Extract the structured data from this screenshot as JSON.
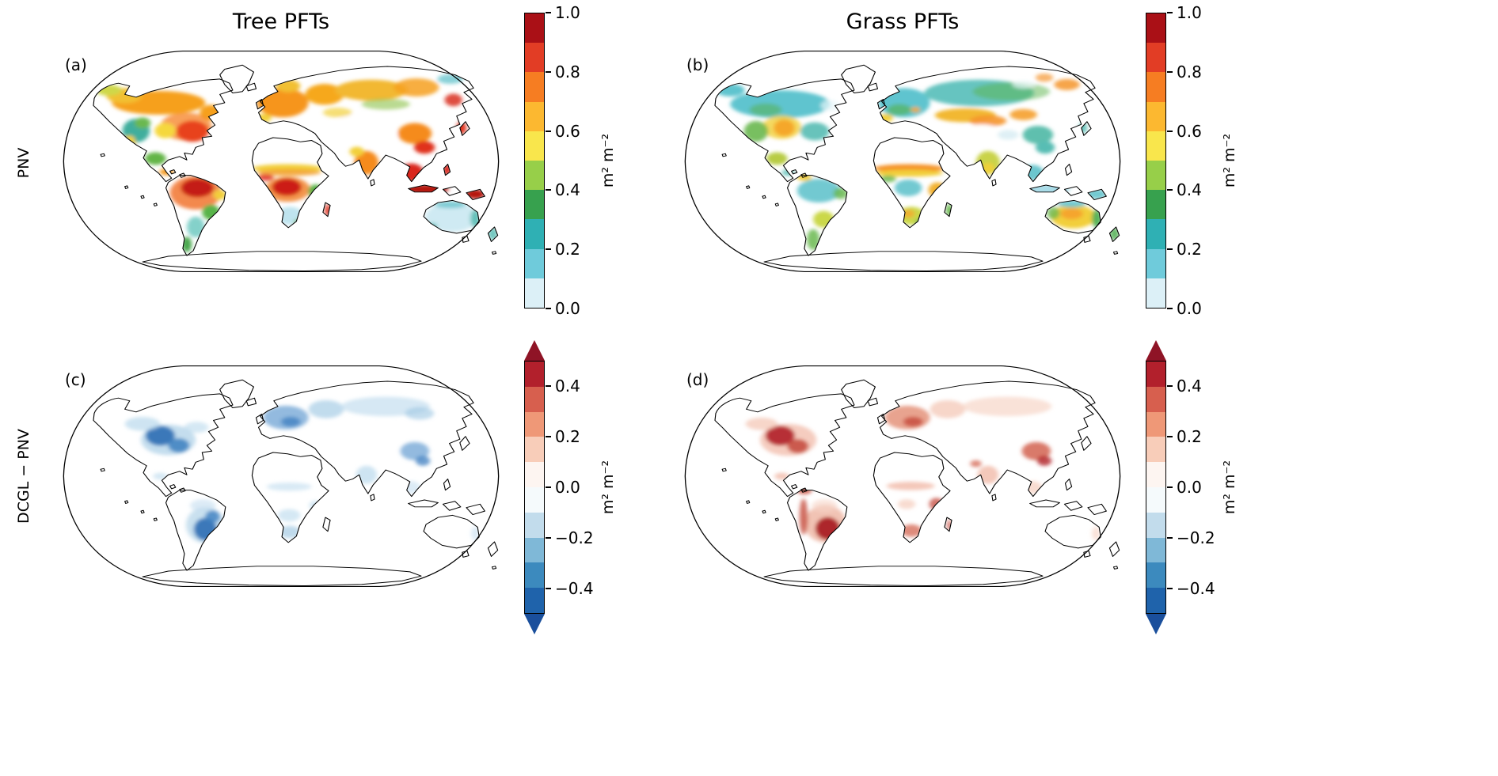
{
  "figure": {
    "column_titles": [
      "Tree PFTs",
      "Grass PFTs"
    ],
    "row_labels": [
      "PNV",
      "DCGL − PNV"
    ]
  },
  "panels": {
    "a": {
      "label": "(a)",
      "row": "PNV",
      "column": "Tree PFTs"
    },
    "b": {
      "label": "(b)",
      "row": "PNV",
      "column": "Grass PFTs"
    },
    "c": {
      "label": "(c)",
      "row": "DCGL − PNV",
      "column": "Tree PFTs"
    },
    "d": {
      "label": "(d)",
      "row": "DCGL − PNV",
      "column": "Grass PFTs"
    }
  },
  "colorbars": {
    "pnv": {
      "unit": "m² m⁻²",
      "ticks": [
        "1.0",
        "0.8",
        "0.6",
        "0.4",
        "0.2",
        "0.0"
      ],
      "range": [
        0.0,
        1.0
      ],
      "colors_bottom_to_top": [
        "#dcf0f7",
        "#6fcbdb",
        "#2fb0b4",
        "#37a14e",
        "#97cf49",
        "#f9e64c",
        "#fcb830",
        "#f67d22",
        "#e23d25",
        "#aa1016"
      ]
    },
    "diff": {
      "unit": "m² m⁻²",
      "ticks": [
        "0.4",
        "0.2",
        "0.0",
        "−0.2",
        "−0.4"
      ],
      "range": [
        -0.5,
        0.5
      ],
      "extended_arrows": true,
      "colors_bottom_to_top": [
        "#1f63ab",
        "#3c8abe",
        "#7fb8d7",
        "#c2dcec",
        "#f5fafc",
        "#fdf5f1",
        "#f8cdb9",
        "#ef9877",
        "#d75f4e",
        "#b2202c"
      ],
      "under_color": "#1a4f9c",
      "over_color": "#8f1426"
    }
  },
  "chart_data": [
    {
      "type": "heatmap",
      "subtype": "global map (Robinson projection)",
      "panel": "(a)",
      "row": "PNV",
      "column": "Tree PFTs",
      "units": "m² m⁻²",
      "colorbar_ticks": [
        0.0,
        0.2,
        0.4,
        0.6,
        0.8,
        1.0
      ],
      "colorbar_range": [
        0.0,
        1.0
      ],
      "high_regions_above_0.6": [
        "eastern North America",
        "boreal Canada",
        "Europe",
        "western Russia",
        "southern Siberia",
        "Amazon basin",
        "Congo basin",
        "India",
        "Southeast Asia",
        "Indonesia and New Guinea (near 1.0)",
        "southeast China"
      ],
      "mid_regions_0.2_to_0.6": [
        "western North America",
        "Mexico",
        "Scandinavia",
        "East Africa",
        "southern Chile",
        "southeastern South America"
      ],
      "low_regions_below_0.2": [
        "Sahara",
        "Arabian Peninsula",
        "central Asian deserts",
        "Tibetan Plateau",
        "Australia interior",
        "southwestern Africa",
        "Greenland",
        "Antarctica"
      ]
    },
    {
      "type": "heatmap",
      "subtype": "global map (Robinson projection)",
      "panel": "(b)",
      "row": "PNV",
      "column": "Grass PFTs",
      "units": "m² m⁻²",
      "colorbar_ticks": [
        0.0,
        0.2,
        0.4,
        0.6,
        0.8,
        1.0
      ],
      "colorbar_range": [
        0.0,
        1.0
      ],
      "high_regions_above_0.6": [
        "central North American plains",
        "Kazakh/Mongolian steppe",
        "Sahel band",
        "East Africa",
        "southern Africa margins",
        "Deccan India",
        "Australian interior",
        "Argentine pampas",
        "northeastern Siberia patches"
      ],
      "mid_regions_0.2_to_0.6": [
        "boreal Canada and Siberia (teal/green)",
        "Europe",
        "Amazon basin",
        "China",
        "Southeast Asia"
      ],
      "low_regions_below_0.2": [
        "Sahara",
        "Arabian Peninsula",
        "central Asian deserts",
        "Tibetan Plateau",
        "Indonesia",
        "Greenland",
        "Antarctica"
      ]
    },
    {
      "type": "heatmap",
      "subtype": "global difference map (Robinson projection)",
      "panel": "(c)",
      "row": "DCGL − PNV",
      "column": "Tree PFTs",
      "units": "m² m⁻²",
      "colorbar_ticks": [
        -0.4,
        -0.2,
        0.0,
        0.2,
        0.4
      ],
      "colorbar_extended_arrows": true,
      "dominant_sign": "negative (blue)",
      "strong_negative_regions_near_-0.4": [
        "central and eastern United States",
        "southeastern South America (S Brazil/N Argentina)",
        "Europe",
        "East Asia"
      ],
      "weak_negative_regions": [
        "boreal Canada",
        "Siberia",
        "India",
        "Sahel",
        "southern Africa",
        "eastern Australia"
      ],
      "positive_regions": []
    },
    {
      "type": "heatmap",
      "subtype": "global difference map (Robinson projection)",
      "panel": "(d)",
      "row": "DCGL − PNV",
      "column": "Grass PFTs",
      "units": "m² m⁻²",
      "colorbar_ticks": [
        -0.4,
        -0.2,
        0.0,
        0.2,
        0.4
      ],
      "colorbar_extended_arrows": true,
      "dominant_sign": "positive (red)",
      "strong_positive_regions_near_0.4": [
        "central United States",
        "southeastern South America (S Brazil/N Argentina)",
        "Europe",
        "East Asia",
        "Andes margin"
      ],
      "weak_positive_regions": [
        "Siberia",
        "India",
        "Sahel",
        "East Africa",
        "southern Africa",
        "eastern Australia"
      ],
      "negative_regions": []
    }
  ]
}
